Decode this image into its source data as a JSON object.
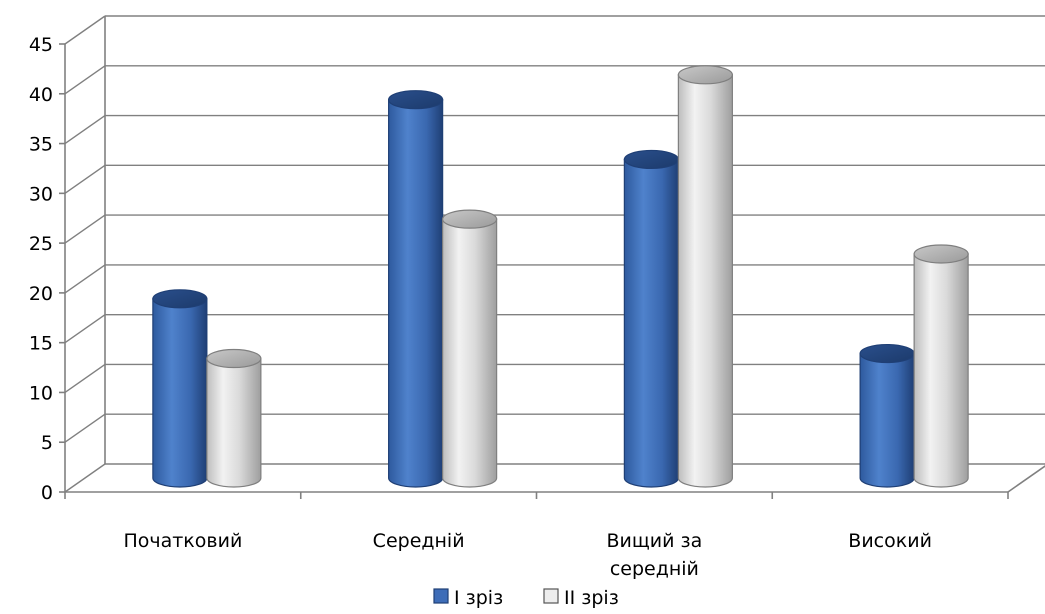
{
  "chart_data": {
    "type": "bar",
    "categories": [
      "Початковий",
      "Середній",
      "Вищий за середній",
      "Високий"
    ],
    "category_lines": [
      [
        "Початковий"
      ],
      [
        "Середній"
      ],
      [
        "Вищий за",
        "середній"
      ],
      [
        "Високий"
      ]
    ],
    "series": [
      {
        "name": "І зріз",
        "values": [
          18,
          38,
          32,
          12.5
        ],
        "color": "#3E6DB8"
      },
      {
        "name": "ІІ зріз",
        "values": [
          12,
          26,
          40.5,
          22.5
        ],
        "color": "#D9D9D9"
      }
    ],
    "ylim": [
      0,
      45
    ],
    "yticks": [
      0,
      5,
      10,
      15,
      20,
      25,
      30,
      35,
      40,
      45
    ],
    "grid": true,
    "legend_position": "bottom",
    "style": "3d-cylinder"
  }
}
